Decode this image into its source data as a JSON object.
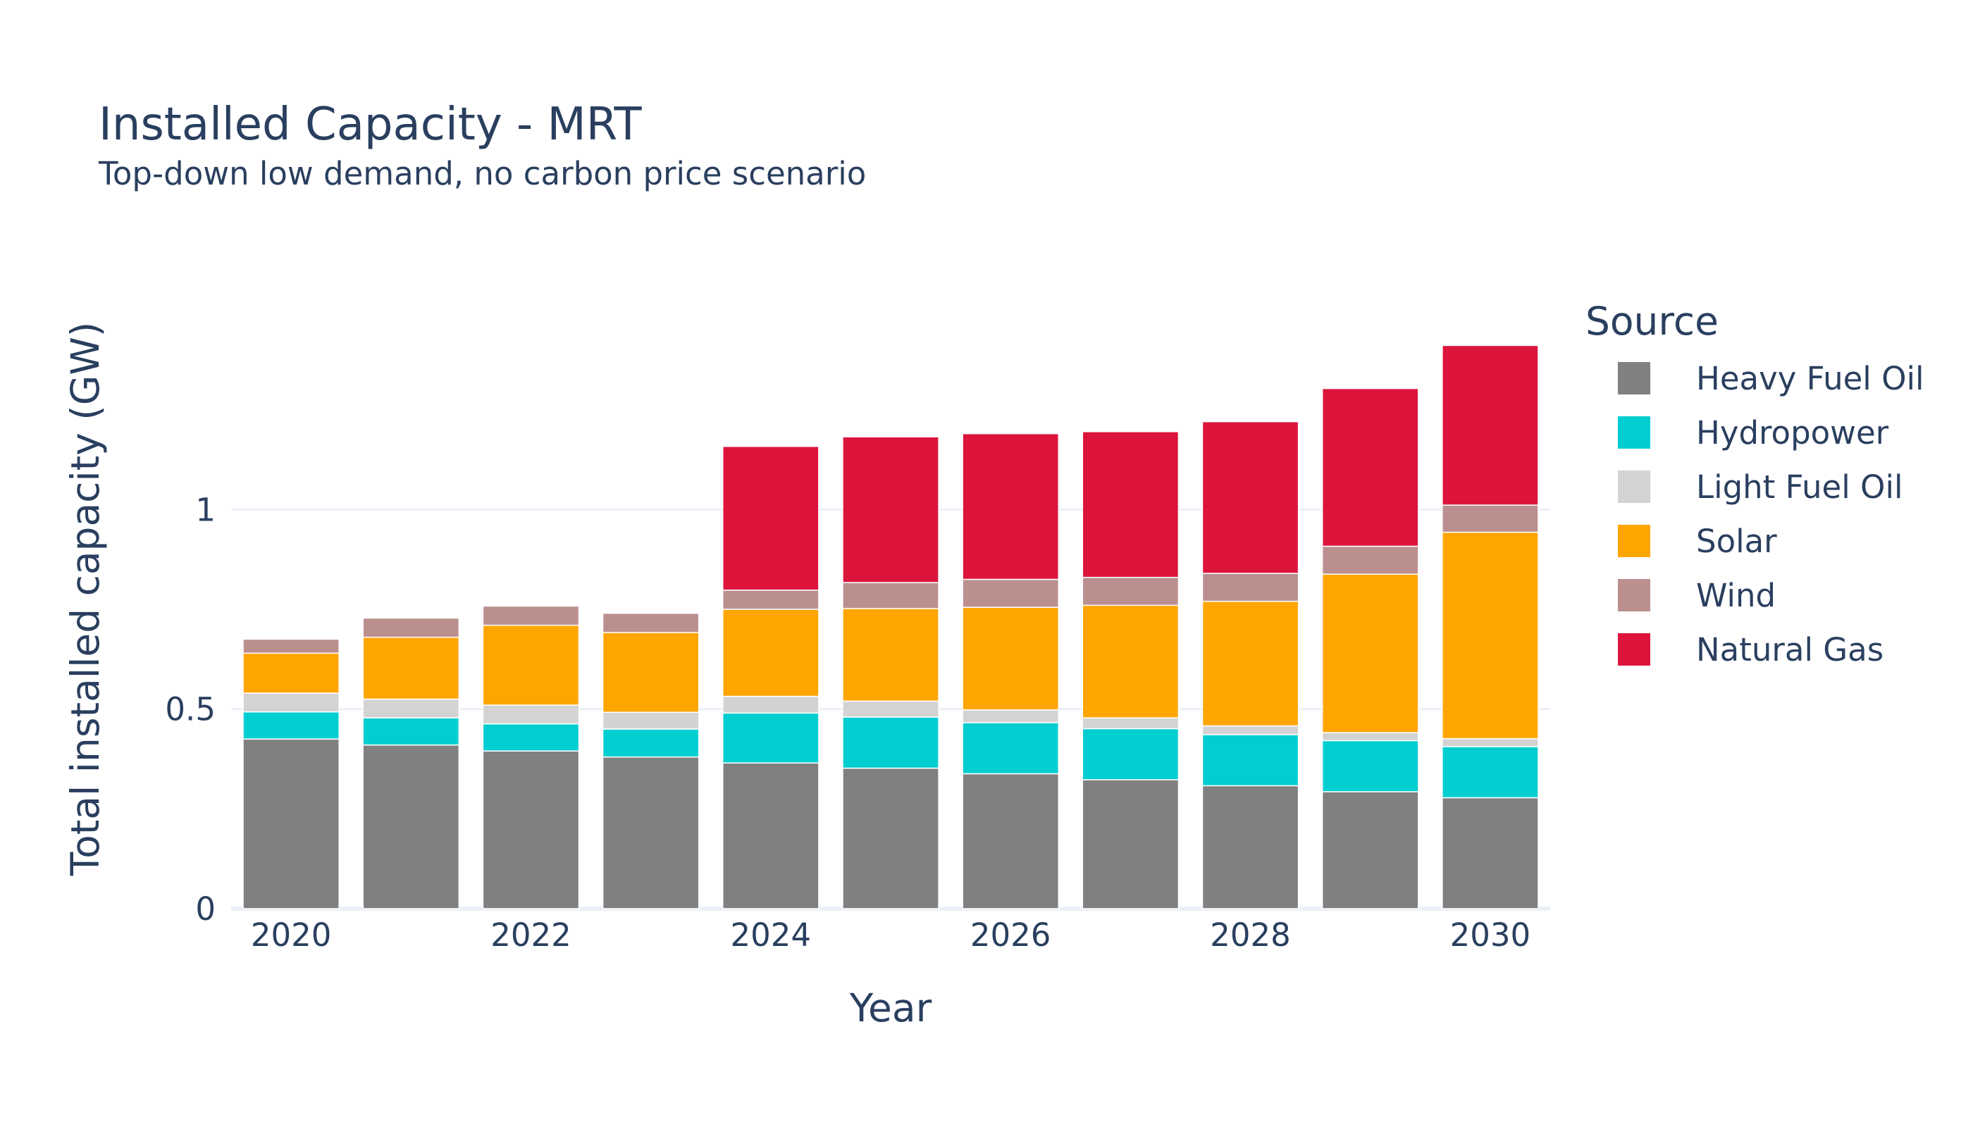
{
  "chart_data": {
    "type": "bar",
    "stacked": true,
    "title": "Installed Capacity - MRT",
    "subtitle": "Top-down low demand, no carbon price scenario",
    "xlabel": "Year",
    "ylabel": "Total installed capacity (GW)",
    "ylim": [
      0,
      1.5
    ],
    "yticks": [
      {
        "value": 0,
        "label": "0"
      },
      {
        "value": 0.5,
        "label": "0.5"
      },
      {
        "value": 1,
        "label": "1"
      }
    ],
    "xticks": [
      2020,
      2022,
      2024,
      2026,
      2028,
      2030
    ],
    "grid": true,
    "legend_title": "Source",
    "legend_position": "right",
    "categories": [
      2020,
      2021,
      2022,
      2023,
      2024,
      2025,
      2026,
      2027,
      2028,
      2029,
      2030
    ],
    "series": [
      {
        "name": "Heavy Fuel Oil",
        "color": "#808080",
        "values": [
          0.425,
          0.41,
          0.395,
          0.38,
          0.365,
          0.352,
          0.338,
          0.323,
          0.308,
          0.293,
          0.278
        ]
      },
      {
        "name": "Hydropower",
        "color": "#00CED1",
        "values": [
          0.068,
          0.068,
          0.068,
          0.07,
          0.125,
          0.128,
          0.128,
          0.128,
          0.128,
          0.128,
          0.128
        ]
      },
      {
        "name": "Light Fuel Oil",
        "color": "#D3D3D3",
        "values": [
          0.047,
          0.047,
          0.047,
          0.042,
          0.042,
          0.04,
          0.032,
          0.027,
          0.022,
          0.02,
          0.02
        ]
      },
      {
        "name": "Solar",
        "color": "#FFA500",
        "values": [
          0.1,
          0.155,
          0.2,
          0.2,
          0.218,
          0.232,
          0.257,
          0.282,
          0.312,
          0.397,
          0.517
        ]
      },
      {
        "name": "Wind",
        "color": "#BC8F8F",
        "values": [
          0.035,
          0.048,
          0.048,
          0.048,
          0.048,
          0.065,
          0.07,
          0.07,
          0.07,
          0.07,
          0.068
        ]
      },
      {
        "name": "Natural Gas",
        "color": "#DC143C",
        "values": [
          0,
          0,
          0,
          0,
          0.36,
          0.365,
          0.365,
          0.365,
          0.38,
          0.395,
          0.4
        ]
      }
    ]
  }
}
